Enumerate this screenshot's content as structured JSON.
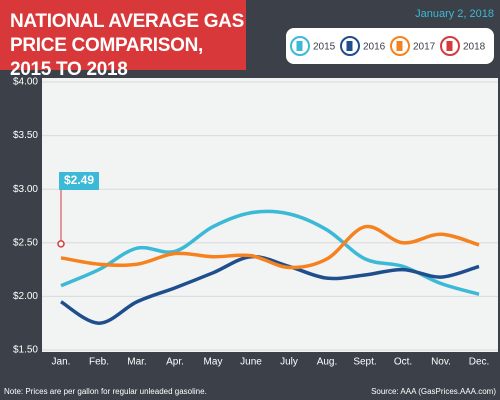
{
  "chart_data": {
    "type": "line",
    "title": "NATIONAL AVERAGE GAS PRICE COMPARISON, 2015 TO 2018",
    "subtitle": "January 2, 2018",
    "categories": [
      "Jan.",
      "Feb.",
      "Mar.",
      "Apr.",
      "May",
      "June",
      "July",
      "Aug.",
      "Sept.",
      "Oct.",
      "Nov.",
      "Dec."
    ],
    "series": [
      {
        "name": "2015",
        "color": "#3cb9d6",
        "values": [
          2.1,
          2.25,
          2.45,
          2.42,
          2.65,
          2.78,
          2.77,
          2.62,
          2.35,
          2.28,
          2.12,
          2.02
        ]
      },
      {
        "name": "2016",
        "color": "#1f4e8c",
        "values": [
          1.95,
          1.75,
          1.95,
          2.08,
          2.22,
          2.37,
          2.28,
          2.17,
          2.2,
          2.25,
          2.18,
          2.28
        ]
      },
      {
        "name": "2017",
        "color": "#f5821f",
        "values": [
          2.36,
          2.3,
          2.3,
          2.4,
          2.37,
          2.38,
          2.27,
          2.35,
          2.65,
          2.5,
          2.58,
          2.48
        ]
      },
      {
        "name": "2018",
        "color": "#d63b3b",
        "values": [
          2.49,
          null,
          null,
          null,
          null,
          null,
          null,
          null,
          null,
          null,
          null,
          null
        ],
        "value_labels": [
          "$2.49",
          null,
          null,
          null,
          null,
          null,
          null,
          null,
          null,
          null,
          null,
          null
        ]
      }
    ],
    "ylim": [
      1.5,
      4.0
    ],
    "yticks": [
      {
        "value": 1.5,
        "label": "$1.50"
      },
      {
        "value": 2.0,
        "label": "$2.00"
      },
      {
        "value": 2.5,
        "label": "$2.50"
      },
      {
        "value": 3.0,
        "label": "$3.00"
      },
      {
        "value": 3.5,
        "label": "$3.50"
      },
      {
        "value": 4.0,
        "label": "$4.00"
      }
    ],
    "grid": true,
    "note": "Note: Prices are per gallon for regular unleaded gasoline.",
    "source": "Source: AAA (GasPrices.AAA.com)"
  }
}
